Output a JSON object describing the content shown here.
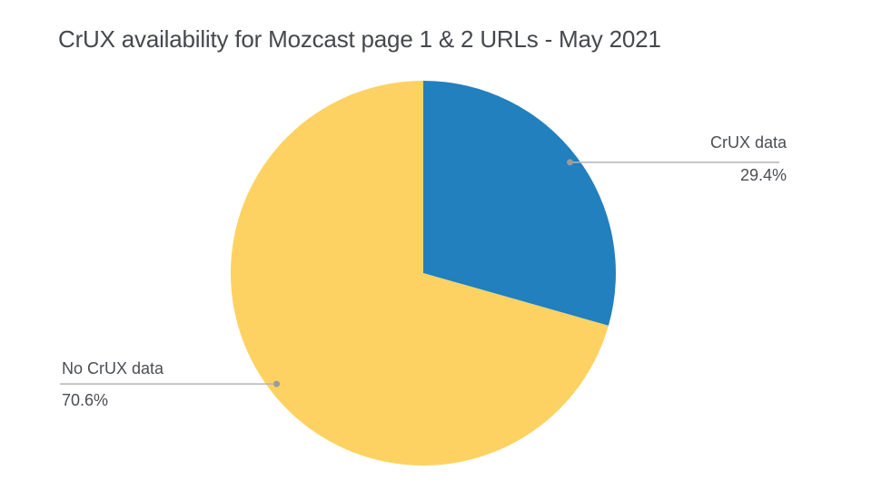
{
  "page": {
    "background": "#ffffff"
  },
  "header": {
    "title": "CrUX availability for Mozcast page 1 & 2 URLs - May 2021"
  },
  "chart_data": {
    "type": "pie",
    "title": "CrUX availability for Mozcast page 1 & 2 URLs - May 2021",
    "slices": [
      {
        "label": "CrUX data",
        "value": 29.4,
        "display_value": "29.4%",
        "color": "#2180bd",
        "label_side": "right"
      },
      {
        "label": "No CrUX data",
        "value": 70.6,
        "display_value": "70.6%",
        "color": "#fdd262",
        "label_side": "left"
      }
    ],
    "start_angle_deg": 0,
    "direction": "clockwise",
    "legend_position": "none",
    "callout_line_color": "#b4b4b4",
    "callout_dot_color": "#9b9b9b",
    "text_color": "#4b4e53"
  }
}
